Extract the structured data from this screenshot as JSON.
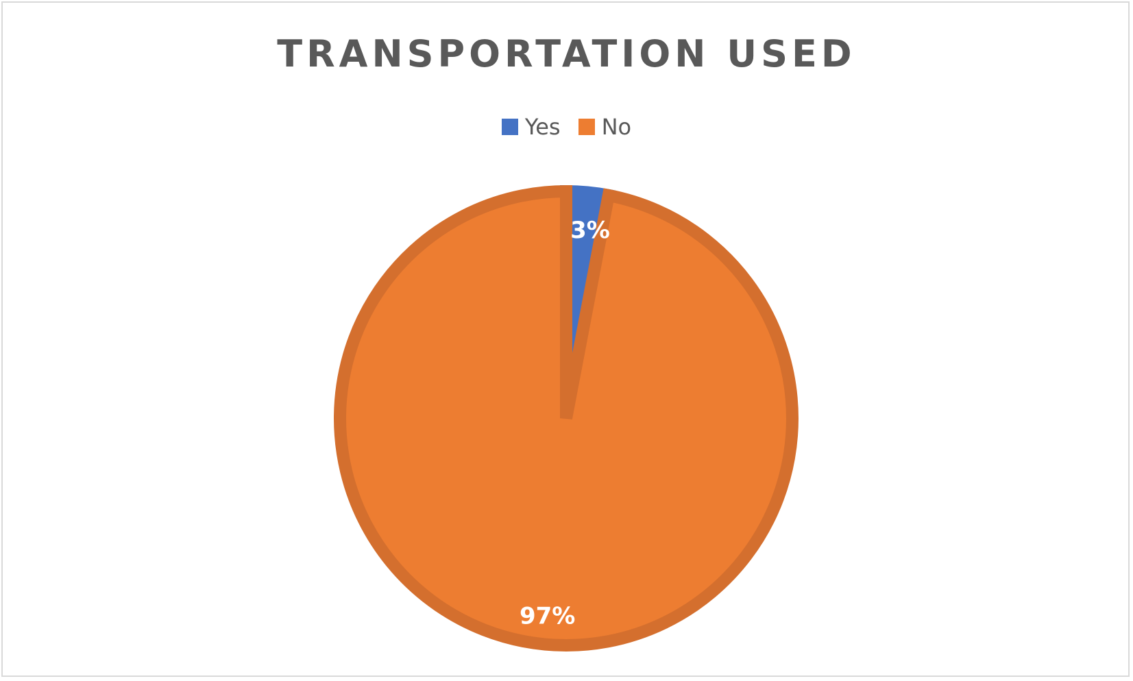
{
  "chart_data": {
    "type": "pie",
    "title": "TRANSPORTATION USED",
    "categories": [
      "Yes",
      "No"
    ],
    "values": [
      3,
      97
    ],
    "data_labels": [
      "3%",
      "97%"
    ],
    "colors": [
      "#4472C4",
      "#ED7D31"
    ],
    "border_colors": [
      "#4472C4",
      "#D46F2E"
    ],
    "legend_position": "top",
    "legend": [
      {
        "label": "Yes",
        "color": "#4472C4"
      },
      {
        "label": "No",
        "color": "#ED7D31"
      }
    ]
  }
}
